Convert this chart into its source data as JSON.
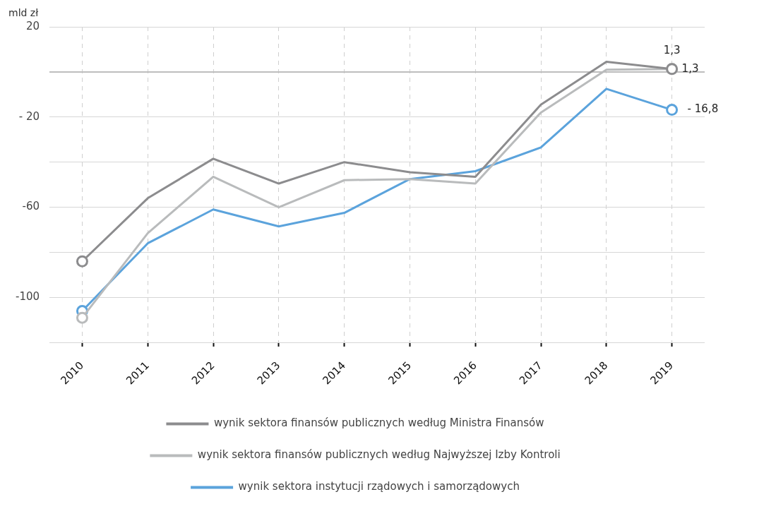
{
  "chart_data": {
    "type": "line",
    "ylabel": "mld zł",
    "categories": [
      "2010",
      "2011",
      "2012",
      "2013",
      "2014",
      "2015",
      "2016",
      "2017",
      "2018",
      "2019"
    ],
    "series": [
      {
        "name": "wynik sektora finansów publicznych według Ministra Finansów",
        "color": "#8c8c8e",
        "values": [
          -84,
          -56,
          -38.5,
          -49.5,
          -40,
          -44.5,
          -46.5,
          -14.5,
          4.5,
          1.3
        ],
        "value_labels": [
          null,
          null,
          null,
          null,
          null,
          null,
          null,
          null,
          null,
          "1,3"
        ]
      },
      {
        "name": "wynik sektora finansów publicznych według Najwyższej Izby Kontroli",
        "color": "#b9bbbc",
        "values": [
          -109,
          -71.5,
          -46.5,
          -60,
          -48,
          -47.5,
          -49.5,
          -18,
          1,
          1.3
        ],
        "value_labels": [
          null,
          null,
          null,
          null,
          null,
          null,
          null,
          null,
          null,
          "1,3"
        ]
      },
      {
        "name": "wynik sektora instytucji rządowych i samorządowych",
        "color": "#5ba3dc",
        "values": [
          -106,
          -76,
          -61,
          -68.5,
          -62.5,
          -47.5,
          -44,
          -33.5,
          -7.5,
          -16.8
        ],
        "value_labels": [
          null,
          null,
          null,
          null,
          null,
          null,
          null,
          null,
          null,
          "- 16,8"
        ]
      }
    ],
    "ylim": [
      -120,
      20
    ],
    "yticks": [
      20,
      {
        "value": 0,
        "label": null
      },
      {
        "value": -20,
        "label": "- 20"
      },
      {
        "value": -40,
        "label": null
      },
      -60,
      {
        "value": -80,
        "label": null
      },
      -100,
      {
        "value": -120,
        "label": null
      }
    ],
    "grid": true,
    "legend": "bottom",
    "line_style": "solid"
  }
}
